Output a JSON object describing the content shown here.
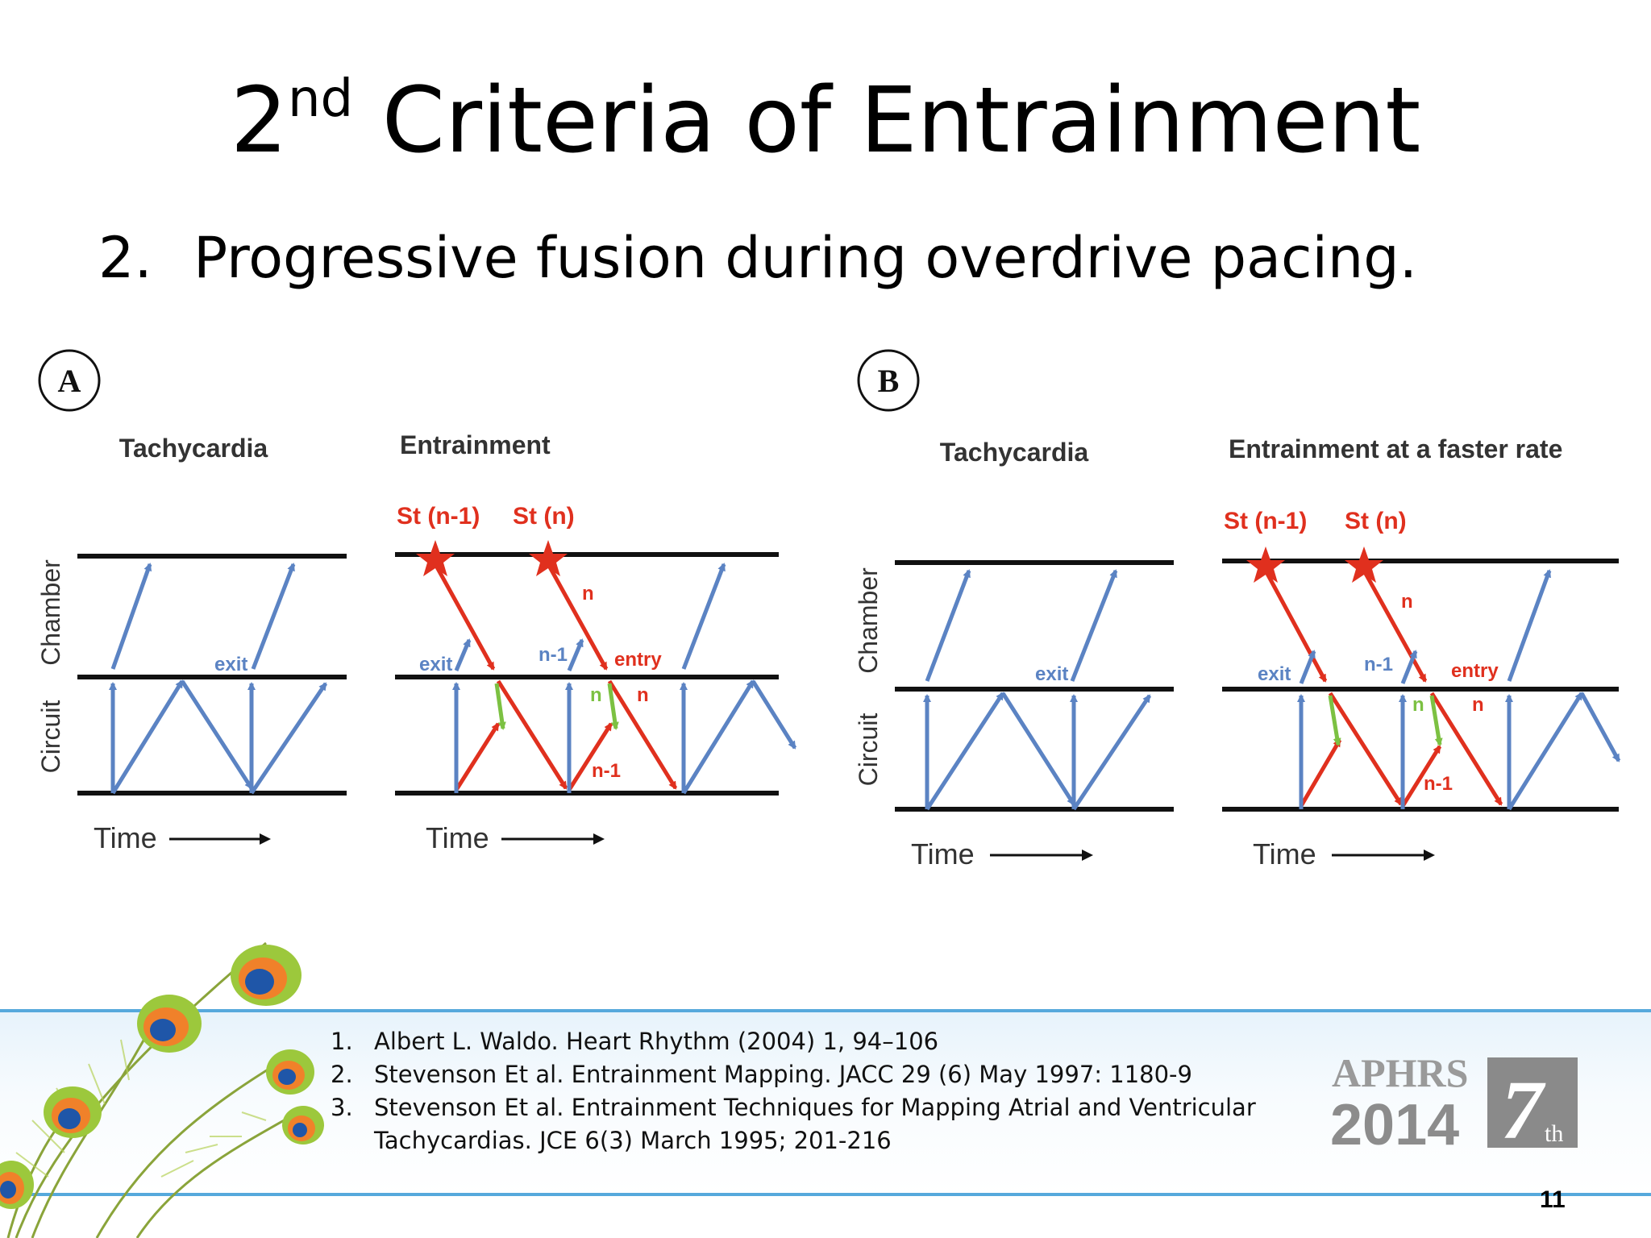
{
  "slide": {
    "title_main": "2",
    "title_sup": "nd",
    "title_rest": " Criteria of Entrainment",
    "bullet_num": "2.",
    "bullet_text": "Progressive fusion during overdrive pacing.",
    "page_number": "11"
  },
  "diagram": {
    "panel_a": {
      "badge": "A",
      "tachycardia_title": "Tachycardia",
      "entrainment_title": "Entrainment",
      "chamber_label": "Chamber",
      "circuit_label": "Circuit",
      "time_label": "Time",
      "time_label_2": "Time",
      "stim_1": "St (n-1)",
      "stim_2": "St (n)",
      "exit_label_tachy": "exit",
      "exit_label": "exit",
      "n1_label": "n-1",
      "entry_label": "entry",
      "n_top": "n",
      "n_green": "n",
      "n_red": "n",
      "n1_bottom": "n-1"
    },
    "panel_b": {
      "badge": "B",
      "tachycardia_title": "Tachycardia",
      "entrainment_title": "Entrainment at a faster rate",
      "chamber_label": "Chamber",
      "circuit_label": "Circuit",
      "time_label": "Time",
      "time_label_2": "Time",
      "stim_1": "St (n-1)",
      "stim_2": "St (n)",
      "exit_label_tachy": "exit",
      "exit_label": "exit",
      "n1_label": "n-1",
      "entry_label": "entry",
      "n_top": "n",
      "n_green": "n",
      "n_red": "n",
      "n1_bottom": "n-1"
    },
    "colors": {
      "blue": "#5b83c3",
      "red": "#e0301e",
      "green": "#7cc142",
      "line": "#111111"
    }
  },
  "references": [
    {
      "num": "1.",
      "text": "Albert L. Waldo. Heart Rhythm (2004) 1, 94–106"
    },
    {
      "num": "2.",
      "text": "Stevenson Et al. Entrainment Mapping. JACC 29 (6) May 1997: 1180-9"
    },
    {
      "num": "3.",
      "text": "Stevenson Et al. Entrainment Techniques for Mapping Atrial and Ventricular Tachycardias. JCE 6(3) March 1995; 201-216"
    }
  ],
  "logo": {
    "line1": "APHRS",
    "line2": "2014",
    "edition": "7",
    "edition_sup": "th"
  }
}
